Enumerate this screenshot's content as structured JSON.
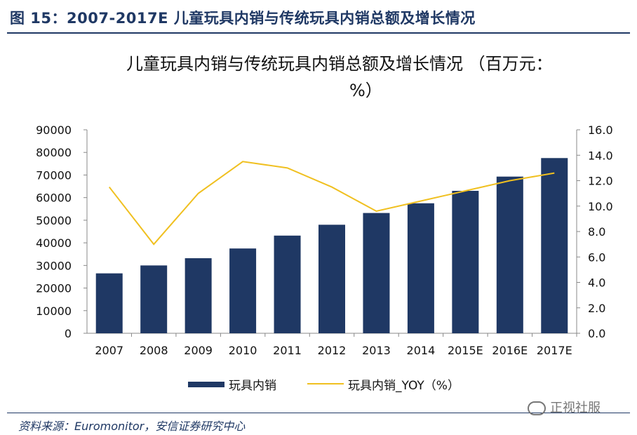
{
  "figure_label": "图 15：2007-2017E 儿童玩具内销与传统玩具内销总额及增长情况",
  "source_text": "资料来源：Euromonitor，安信证券研究中心",
  "watermark_text": "正视社服",
  "colors": {
    "bar": "#1f3864",
    "line": "#f0c020",
    "header": "#1f3864"
  },
  "chart_data": {
    "type": "bar",
    "title_line1": "儿童玩具内销与传统玩具内销总额及增长情况 （百万元：",
    "title_line2": "%）",
    "categories": [
      "2007",
      "2008",
      "2009",
      "2010",
      "2011",
      "2012",
      "2013",
      "2014",
      "2015E",
      "2016E",
      "2017E"
    ],
    "series": [
      {
        "name": "玩具内销",
        "type": "bar",
        "axis": "left",
        "values": [
          26500,
          30000,
          33200,
          37500,
          43200,
          48000,
          53200,
          57500,
          63000,
          69300,
          77500
        ]
      },
      {
        "name": "玩具内销_YOY（%）",
        "type": "line",
        "axis": "right",
        "values": [
          11.5,
          7.0,
          11.0,
          13.5,
          13.0,
          11.5,
          9.6,
          10.4,
          11.2,
          12.0,
          12.6
        ]
      }
    ],
    "y_left": {
      "min": 0,
      "max": 90000,
      "ticks": [
        "0",
        "10000",
        "20000",
        "30000",
        "40000",
        "50000",
        "60000",
        "70000",
        "80000",
        "90000"
      ]
    },
    "y_right": {
      "min": 0,
      "max": 16,
      "ticks": [
        "0.0",
        "2.0",
        "4.0",
        "6.0",
        "8.0",
        "10.0",
        "12.0",
        "14.0",
        "16.0"
      ]
    },
    "grid": false,
    "legend_position": "bottom"
  }
}
